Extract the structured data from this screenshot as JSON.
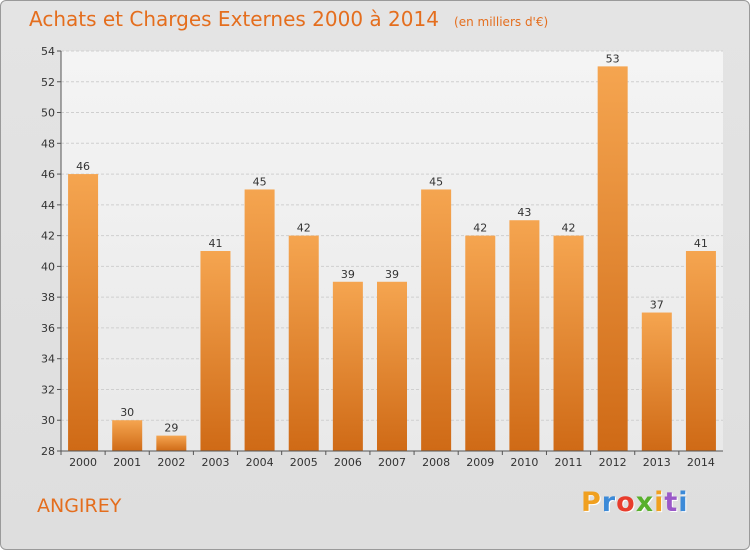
{
  "title": "Achats et Charges Externes 2000 à 2014",
  "subtitle": "(en milliers d'€)",
  "city": "ANGIREY",
  "logo": {
    "text": "Proxiti",
    "colors": [
      "#f0a020",
      "#3c8ad8",
      "#e83c2c",
      "#58b02c",
      "#f0a020",
      "#9a58c8",
      "#3c8ad8"
    ]
  },
  "colors": {
    "bar_top": "#f5a550",
    "bar_bottom": "#cf6a16",
    "title": "#e46e1e"
  },
  "chart_data": {
    "type": "bar",
    "categories": [
      "2000",
      "2001",
      "2002",
      "2003",
      "2004",
      "2005",
      "2006",
      "2007",
      "2008",
      "2009",
      "2010",
      "2011",
      "2012",
      "2013",
      "2014"
    ],
    "values": [
      46,
      30,
      29,
      41,
      45,
      42,
      39,
      39,
      45,
      42,
      43,
      42,
      53,
      37,
      41
    ],
    "ylim": [
      28,
      54
    ],
    "yticks": [
      28,
      30,
      32,
      34,
      36,
      38,
      40,
      42,
      44,
      46,
      48,
      50,
      52,
      54
    ],
    "grid": true,
    "legend": "none"
  }
}
